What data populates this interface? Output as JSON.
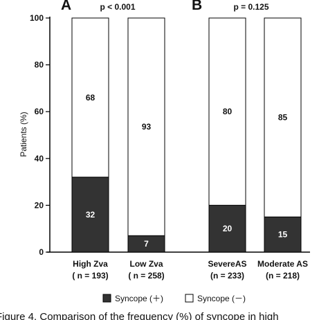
{
  "chart_data": {
    "type": "bar",
    "stacked": true,
    "ylabel": "Patients (%)",
    "ylim": [
      0,
      100
    ],
    "yticks": [
      0,
      20,
      40,
      60,
      80,
      100
    ],
    "panels": [
      {
        "letter": "A",
        "pvalue": "p < 0.001"
      },
      {
        "letter": "B",
        "pvalue": "p = 0.125"
      }
    ],
    "bars": [
      {
        "name": "High Zva",
        "n": "( n = 193)",
        "syncope_pos": 32,
        "syncope_neg": 68
      },
      {
        "name": "Low Zva",
        "n": "( n = 258)",
        "syncope_pos": 7,
        "syncope_neg": 93
      },
      {
        "name": "SevereAS",
        "n": "(n = 233)",
        "syncope_pos": 20,
        "syncope_neg": 80
      },
      {
        "name": "Moderate AS",
        "n": "(n = 218)",
        "syncope_pos": 15,
        "syncope_neg": 85
      }
    ],
    "legend": [
      {
        "label": "Syncope (＋)",
        "color": "#333333"
      },
      {
        "label": "Syncope (－)",
        "color": "#ffffff"
      }
    ]
  },
  "caption": "Figure 4. Comparison of the frequency (%) of syncope in high"
}
